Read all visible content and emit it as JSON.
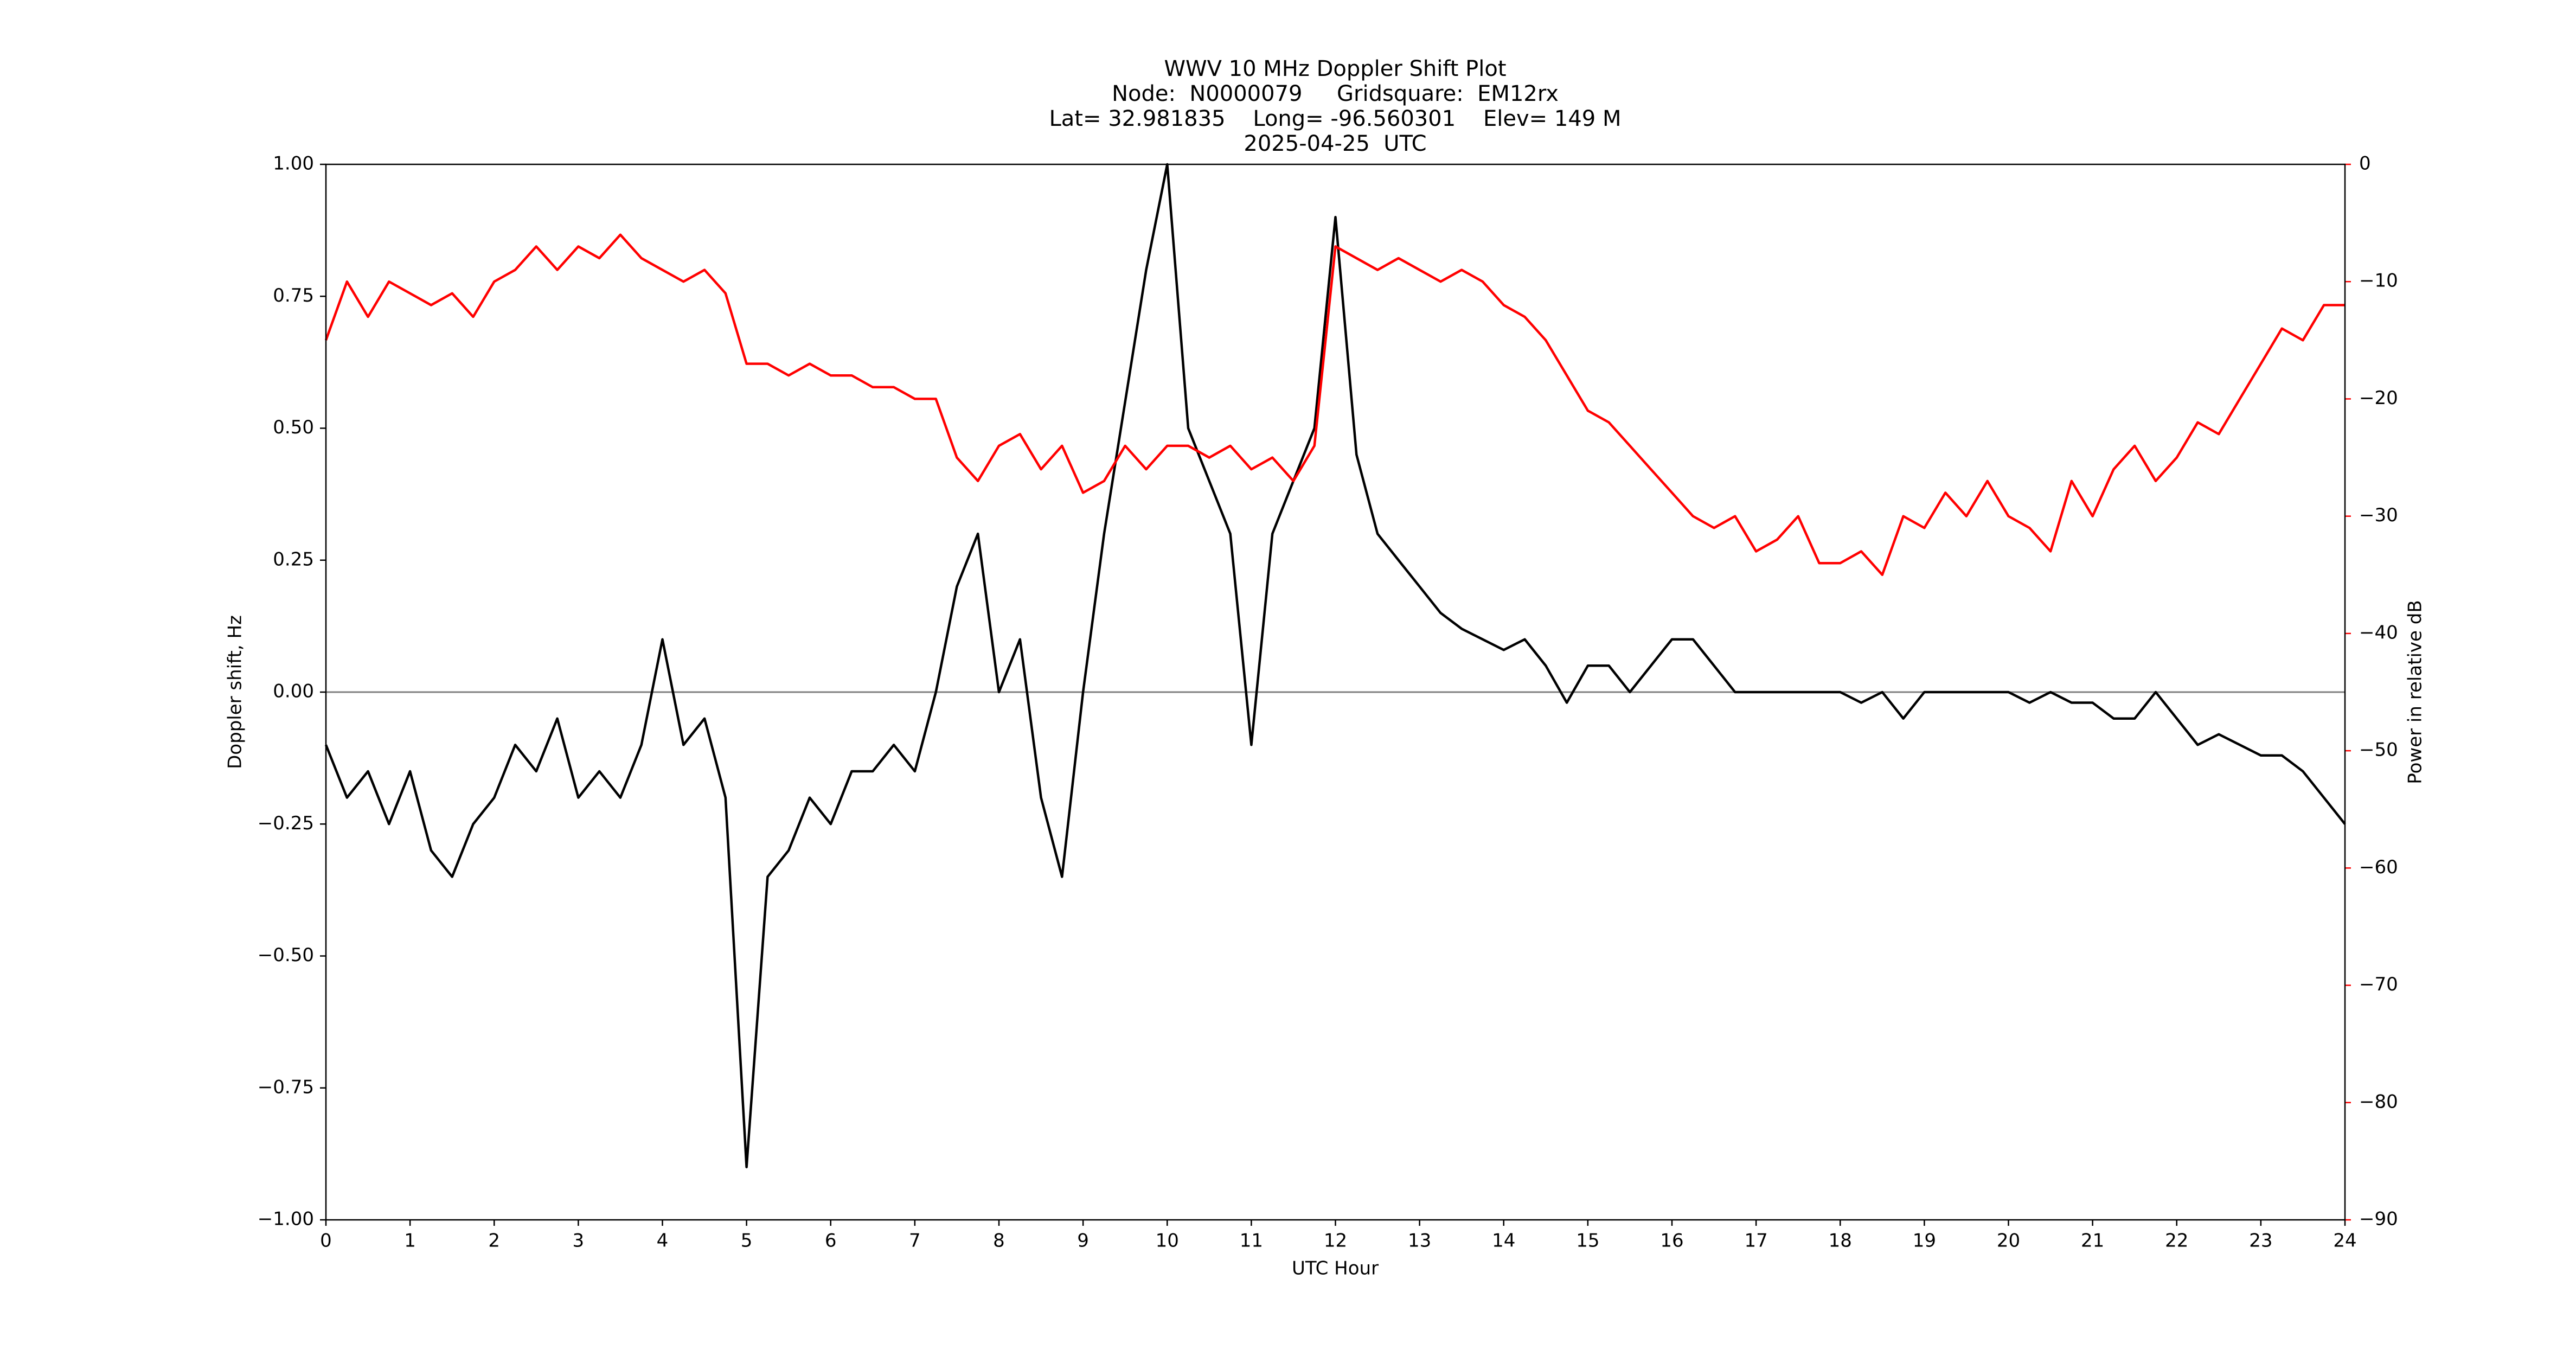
{
  "chart_data": {
    "type": "line",
    "title_lines": [
      "WWV 10 MHz Doppler Shift Plot",
      "Node:  N0000079     Gridsquare:  EM12rx",
      "Lat= 32.981835    Long= -96.560301    Elev= 149 M",
      "2025-04-25  UTC"
    ],
    "x_label": "UTC Hour",
    "y_label": "Doppler shift, Hz",
    "y2_label": "Power in relative dB",
    "x": [
      0,
      0.25,
      0.5,
      0.75,
      1,
      1.25,
      1.5,
      1.75,
      2,
      2.25,
      2.5,
      2.75,
      3,
      3.25,
      3.5,
      3.75,
      4,
      4.25,
      4.5,
      4.75,
      5,
      5.25,
      5.5,
      5.75,
      6,
      6.25,
      6.5,
      6.75,
      7,
      7.25,
      7.5,
      7.75,
      8,
      8.25,
      8.5,
      8.75,
      9,
      9.25,
      9.5,
      9.75,
      10,
      10.25,
      10.5,
      10.75,
      11,
      11.25,
      11.5,
      11.75,
      12,
      12.25,
      12.5,
      12.75,
      13,
      13.25,
      13.5,
      13.75,
      14,
      14.25,
      14.5,
      14.75,
      15,
      15.25,
      15.5,
      15.75,
      16,
      16.25,
      16.5,
      16.75,
      17,
      17.25,
      17.5,
      17.75,
      18,
      18.25,
      18.5,
      18.75,
      19,
      19.25,
      19.5,
      19.75,
      20,
      20.25,
      20.5,
      20.75,
      21,
      21.25,
      21.5,
      21.75,
      22,
      22.25,
      22.5,
      22.75,
      23,
      23.25,
      23.5,
      23.75,
      24
    ],
    "series": [
      {
        "color": "#000000",
        "axis": "y",
        "values": [
          -0.1,
          -0.2,
          -0.15,
          -0.25,
          -0.15,
          -0.3,
          -0.35,
          -0.25,
          -0.2,
          -0.1,
          -0.15,
          -0.05,
          -0.2,
          -0.15,
          -0.2,
          -0.1,
          0.1,
          -0.1,
          -0.05,
          -0.2,
          -0.9,
          -0.35,
          -0.3,
          -0.2,
          -0.25,
          -0.15,
          -0.15,
          -0.1,
          -0.15,
          0.0,
          0.2,
          0.3,
          0.0,
          0.1,
          -0.2,
          -0.35,
          0.0,
          0.3,
          0.55,
          0.8,
          1.0,
          0.5,
          0.4,
          0.3,
          -0.1,
          0.3,
          0.4,
          0.5,
          0.9,
          0.45,
          0.3,
          0.25,
          0.2,
          0.15,
          0.12,
          0.1,
          0.08,
          0.1,
          0.05,
          -0.02,
          0.05,
          0.05,
          0.0,
          0.05,
          0.1,
          0.1,
          0.05,
          0.0,
          0.0,
          0.0,
          0.0,
          0.0,
          0.0,
          -0.02,
          0.0,
          -0.05,
          0.0,
          0.0,
          0.0,
          0.0,
          0.0,
          -0.02,
          0.0,
          -0.02,
          -0.02,
          -0.05,
          -0.05,
          0.0,
          -0.05,
          -0.1,
          -0.08,
          -0.1,
          -0.12,
          -0.12,
          -0.15,
          -0.2,
          -0.25
        ]
      },
      {
        "color": "#ff0000",
        "axis": "y2",
        "values": [
          -15,
          -10,
          -13,
          -10,
          -11,
          -12,
          -11,
          -13,
          -10,
          -9,
          -7,
          -9,
          -7,
          -8,
          -6,
          -8,
          -9,
          -10,
          -9,
          -11,
          -17,
          -17,
          -18,
          -17,
          -18,
          -18,
          -19,
          -19,
          -20,
          -20,
          -25,
          -27,
          -24,
          -23,
          -26,
          -24,
          -28,
          -27,
          -24,
          -26,
          -24,
          -24,
          -25,
          -24,
          -26,
          -25,
          -27,
          -24,
          -7,
          -8,
          -9,
          -8,
          -9,
          -10,
          -9,
          -10,
          -12,
          -13,
          -15,
          -18,
          -21,
          -22,
          -24,
          -26,
          -28,
          -30,
          -31,
          -30,
          -33,
          -32,
          -30,
          -34,
          -34,
          -33,
          -35,
          -30,
          -31,
          -28,
          -30,
          -27,
          -30,
          -31,
          -33,
          -27,
          -30,
          -26,
          -24,
          -27,
          -25,
          -22,
          -23,
          -20,
          -17,
          -14,
          -15,
          -12,
          -12
        ]
      }
    ],
    "hline": 0,
    "xlim": [
      0,
      24
    ],
    "xticks": [
      0,
      1,
      2,
      3,
      4,
      5,
      6,
      7,
      8,
      9,
      10,
      11,
      12,
      13,
      14,
      15,
      16,
      17,
      18,
      19,
      20,
      21,
      22,
      23,
      24
    ],
    "ylim": [
      -1,
      1
    ],
    "yticks": [
      {
        "value": -1,
        "label": "−1.00"
      },
      {
        "value": -0.75,
        "label": "−0.75"
      },
      {
        "value": -0.5,
        "label": "−0.50"
      },
      {
        "value": -0.25,
        "label": "−0.25"
      },
      {
        "value": 0,
        "label": "0.00"
      },
      {
        "value": 0.25,
        "label": "0.25"
      },
      {
        "value": 0.5,
        "label": "0.50"
      },
      {
        "value": 0.75,
        "label": "0.75"
      },
      {
        "value": 1,
        "label": "1.00"
      }
    ],
    "y2lim": [
      -90,
      0
    ],
    "y2ticks": [
      {
        "value": -90,
        "label": "−90"
      },
      {
        "value": -80,
        "label": "−80"
      },
      {
        "value": -70,
        "label": "−70"
      },
      {
        "value": -60,
        "label": "−60"
      },
      {
        "value": -50,
        "label": "−50"
      },
      {
        "value": -40,
        "label": "−40"
      },
      {
        "value": -30,
        "label": "−30"
      },
      {
        "value": -20,
        "label": "−20"
      },
      {
        "value": -10,
        "label": "−10"
      },
      0
    ],
    "y2_color": "#ff0000"
  }
}
